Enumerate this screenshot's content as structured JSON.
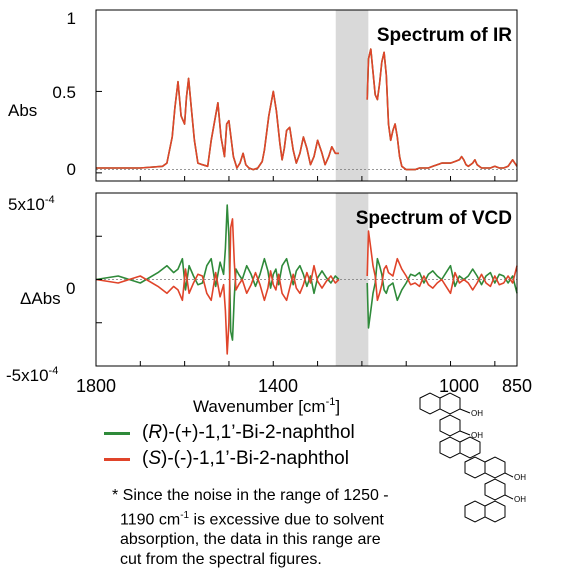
{
  "colors": {
    "R": "#2f8a3a",
    "S": "#e0442a",
    "cut": "#d9d9d9",
    "zero": "#777777"
  },
  "chart_data": [
    {
      "type": "line",
      "title": "Spectrum of IR",
      "ylabel": "Abs",
      "xlabel": "",
      "xlim": [
        1800,
        850
      ],
      "ylim": [
        -0.05,
        1.0
      ],
      "yticks": [
        "1",
        "0.5",
        "0"
      ],
      "cut_range": [
        1250,
        1190
      ],
      "series": [
        {
          "name": "(R)-(+)-1,1'-Bi-2-naphthol",
          "color_key": "R",
          "x": [
            1800,
            1700,
            1650,
            1640,
            1628,
            1622,
            1615,
            1608,
            1600,
            1596,
            1591,
            1585,
            1578,
            1570,
            1560,
            1548,
            1540,
            1525,
            1518,
            1510,
            1505,
            1500,
            1490,
            1482,
            1475,
            1468,
            1462,
            1455,
            1445,
            1435,
            1425,
            1420,
            1410,
            1400,
            1393,
            1385,
            1380,
            1375,
            1370,
            1363,
            1355,
            1348,
            1340,
            1332,
            1324,
            1316,
            1308,
            1300,
            1290,
            1283,
            1275,
            1268,
            1260,
            1252,
            1188,
            1185,
            1180,
            1175,
            1170,
            1165,
            1160,
            1155,
            1150,
            1145,
            1140,
            1135,
            1130,
            1125,
            1120,
            1115,
            1110,
            1100,
            1090,
            1080,
            1070,
            1060,
            1050,
            1040,
            1030,
            1020,
            1000,
            990,
            980,
            975,
            970,
            965,
            960,
            950,
            945,
            940,
            930,
            920,
            910,
            900,
            890,
            880,
            870,
            860,
            850
          ],
          "y": [
            0.03,
            0.03,
            0.04,
            0.06,
            0.22,
            0.4,
            0.56,
            0.35,
            0.3,
            0.46,
            0.58,
            0.4,
            0.2,
            0.06,
            0.05,
            0.04,
            0.2,
            0.43,
            0.22,
            0.1,
            0.3,
            0.32,
            0.1,
            0.03,
            0.06,
            0.12,
            0.05,
            0.03,
            0.02,
            0.03,
            0.07,
            0.14,
            0.35,
            0.5,
            0.38,
            0.18,
            0.08,
            0.15,
            0.26,
            0.28,
            0.14,
            0.06,
            0.12,
            0.22,
            0.15,
            0.05,
            0.1,
            0.2,
            0.12,
            0.05,
            0.1,
            0.16,
            0.12,
            0.12,
            0.45,
            0.7,
            0.76,
            0.62,
            0.48,
            0.45,
            0.55,
            0.68,
            0.74,
            0.6,
            0.3,
            0.2,
            0.26,
            0.3,
            0.22,
            0.1,
            0.04,
            0.02,
            0.02,
            0.02,
            0.03,
            0.03,
            0.03,
            0.04,
            0.05,
            0.06,
            0.06,
            0.07,
            0.08,
            0.1,
            0.08,
            0.05,
            0.04,
            0.06,
            0.08,
            0.05,
            0.03,
            0.03,
            0.03,
            0.04,
            0.03,
            0.03,
            0.04,
            0.08,
            0.04
          ]
        },
        {
          "name": "(S)-(-)-1,1'-Bi-2-naphthol",
          "color_key": "S",
          "x": [
            1800,
            1700,
            1650,
            1640,
            1628,
            1622,
            1615,
            1608,
            1600,
            1596,
            1591,
            1585,
            1578,
            1570,
            1560,
            1548,
            1540,
            1525,
            1518,
            1510,
            1505,
            1500,
            1490,
            1482,
            1475,
            1468,
            1462,
            1455,
            1445,
            1435,
            1425,
            1420,
            1410,
            1400,
            1393,
            1385,
            1380,
            1375,
            1370,
            1363,
            1355,
            1348,
            1340,
            1332,
            1324,
            1316,
            1308,
            1300,
            1290,
            1283,
            1275,
            1268,
            1260,
            1252,
            1188,
            1185,
            1180,
            1175,
            1170,
            1165,
            1160,
            1155,
            1150,
            1145,
            1140,
            1135,
            1130,
            1125,
            1120,
            1115,
            1110,
            1100,
            1090,
            1080,
            1070,
            1060,
            1050,
            1040,
            1030,
            1020,
            1000,
            990,
            980,
            975,
            970,
            965,
            960,
            950,
            945,
            940,
            930,
            920,
            910,
            900,
            890,
            880,
            870,
            860,
            850
          ],
          "y": [
            0.03,
            0.03,
            0.04,
            0.06,
            0.22,
            0.4,
            0.56,
            0.35,
            0.3,
            0.46,
            0.58,
            0.4,
            0.2,
            0.06,
            0.05,
            0.04,
            0.2,
            0.43,
            0.22,
            0.1,
            0.3,
            0.32,
            0.1,
            0.03,
            0.06,
            0.12,
            0.05,
            0.03,
            0.02,
            0.03,
            0.07,
            0.14,
            0.35,
            0.5,
            0.38,
            0.18,
            0.08,
            0.15,
            0.26,
            0.28,
            0.14,
            0.06,
            0.12,
            0.22,
            0.15,
            0.05,
            0.1,
            0.2,
            0.12,
            0.05,
            0.1,
            0.16,
            0.12,
            0.12,
            0.45,
            0.7,
            0.76,
            0.62,
            0.48,
            0.45,
            0.55,
            0.68,
            0.74,
            0.6,
            0.3,
            0.2,
            0.26,
            0.3,
            0.22,
            0.1,
            0.04,
            0.02,
            0.02,
            0.02,
            0.03,
            0.03,
            0.03,
            0.04,
            0.05,
            0.06,
            0.06,
            0.07,
            0.08,
            0.1,
            0.08,
            0.05,
            0.04,
            0.06,
            0.08,
            0.05,
            0.03,
            0.03,
            0.03,
            0.04,
            0.03,
            0.03,
            0.04,
            0.08,
            0.04
          ]
        }
      ]
    },
    {
      "type": "line",
      "title": "Spectrum of VCD",
      "ylabel": "ΔAbs",
      "xlabel": "Wavenumber [cm-1]",
      "xlim": [
        1800,
        850
      ],
      "ylim": [
        -0.0005,
        0.0005
      ],
      "yticks": [
        "5x10-4",
        "0",
        "-5x10-4"
      ],
      "xticks": [
        "1800",
        "1400",
        "1000",
        "850"
      ],
      "cut_range": [
        1250,
        1190
      ],
      "series": [
        {
          "name": "(R)-(+)-1,1'-Bi-2-naphthol",
          "color_key": "R",
          "x": [
            1800,
            1750,
            1700,
            1660,
            1640,
            1625,
            1615,
            1605,
            1598,
            1590,
            1580,
            1570,
            1560,
            1550,
            1540,
            1530,
            1520,
            1512,
            1508,
            1504,
            1500,
            1496,
            1492,
            1488,
            1484,
            1478,
            1470,
            1460,
            1450,
            1440,
            1430,
            1420,
            1412,
            1406,
            1400,
            1394,
            1388,
            1380,
            1370,
            1362,
            1355,
            1348,
            1340,
            1332,
            1324,
            1316,
            1308,
            1300,
            1290,
            1280,
            1270,
            1260,
            1252,
            1188,
            1185,
            1180,
            1175,
            1170,
            1165,
            1160,
            1155,
            1150,
            1145,
            1140,
            1130,
            1120,
            1110,
            1100,
            1090,
            1080,
            1070,
            1060,
            1050,
            1040,
            1030,
            1020,
            1010,
            1000,
            990,
            980,
            970,
            960,
            950,
            940,
            930,
            920,
            910,
            900,
            890,
            880,
            870,
            860,
            850
          ],
          "y": [
            0.0,
            2e-05,
            -2e-05,
            4e-05,
            8e-05,
            4e-05,
            6e-05,
            0.00012,
            -6e-05,
            8e-05,
            2e-05,
            -3e-05,
            -2e-05,
            8e-05,
            0.00012,
            -4e-05,
            0.0001,
            3e-05,
            0.00018,
            0.00043,
            0.00025,
            -0.0003,
            -0.00035,
            -0.0001,
            6e-05,
            3e-05,
            0.0,
            8e-05,
            3e-05,
            -4e-05,
            3e-05,
            0.00012,
            5e-05,
            -5e-05,
            3e-05,
            6e-05,
            -3e-05,
            8e-05,
            0.00012,
            4e-05,
            -3e-05,
            5e-05,
            8e-05,
            3e-05,
            -4e-05,
            2e-05,
            -8e-05,
            1e-05,
            5e-05,
            1e-05,
            -2e-05,
            2e-05,
            0.0,
            -2e-05,
            -0.00028,
            -0.00018,
            -8e-05,
            -2e-05,
            0.00012,
            8e-05,
            3e-05,
            -6e-05,
            -8e-05,
            -4e-05,
            -2e-05,
            -0.00012,
            -6e-05,
            -2e-05,
            3e-05,
            2e-05,
            4e-05,
            -2e-05,
            3e-05,
            5e-05,
            2e-05,
            0.0,
            4e-05,
            8e-05,
            -4e-05,
            2e-05,
            0.0,
            2e-05,
            6e-05,
            2e-05,
            -3e-05,
            2e-05,
            4e-05,
            -2e-05,
            3e-05,
            2e-05,
            -2e-05,
            2e-05,
            -8e-05
          ]
        },
        {
          "name": "(S)-(-)-1,1'-Bi-2-naphthol",
          "color_key": "S",
          "x": [
            1800,
            1750,
            1700,
            1660,
            1640,
            1625,
            1615,
            1605,
            1598,
            1590,
            1580,
            1570,
            1560,
            1550,
            1540,
            1530,
            1520,
            1512,
            1508,
            1504,
            1500,
            1496,
            1492,
            1488,
            1484,
            1478,
            1470,
            1460,
            1450,
            1440,
            1430,
            1420,
            1412,
            1406,
            1400,
            1394,
            1388,
            1380,
            1370,
            1362,
            1355,
            1348,
            1340,
            1332,
            1324,
            1316,
            1308,
            1300,
            1290,
            1280,
            1270,
            1260,
            1252,
            1188,
            1185,
            1180,
            1175,
            1170,
            1165,
            1160,
            1155,
            1150,
            1145,
            1140,
            1130,
            1120,
            1110,
            1100,
            1090,
            1080,
            1070,
            1060,
            1050,
            1040,
            1030,
            1020,
            1010,
            1000,
            990,
            980,
            970,
            960,
            950,
            940,
            930,
            920,
            910,
            900,
            890,
            880,
            870,
            860,
            850
          ],
          "y": [
            0.0,
            -2e-05,
            2e-05,
            -4e-05,
            -8e-05,
            -4e-05,
            -6e-05,
            -0.00012,
            6e-05,
            -8e-05,
            -2e-05,
            3e-05,
            2e-05,
            -8e-05,
            -0.00012,
            4e-05,
            -0.0001,
            -3e-05,
            -0.00018,
            -0.00043,
            -0.00025,
            0.0003,
            0.00035,
            0.0001,
            -6e-05,
            -3e-05,
            0.0,
            -8e-05,
            -3e-05,
            4e-05,
            -3e-05,
            -0.00012,
            -5e-05,
            5e-05,
            -3e-05,
            -6e-05,
            3e-05,
            -8e-05,
            -0.00012,
            -4e-05,
            3e-05,
            -5e-05,
            -8e-05,
            -3e-05,
            4e-05,
            -2e-05,
            8e-05,
            -1e-05,
            -5e-05,
            -1e-05,
            2e-05,
            -2e-05,
            0.0,
            2e-05,
            0.00028,
            0.00018,
            8e-05,
            2e-05,
            -0.00012,
            -8e-05,
            -3e-05,
            6e-05,
            8e-05,
            4e-05,
            2e-05,
            0.00012,
            6e-05,
            2e-05,
            -3e-05,
            -2e-05,
            -4e-05,
            2e-05,
            -3e-05,
            -5e-05,
            -2e-05,
            0.0,
            -4e-05,
            -8e-05,
            4e-05,
            -2e-05,
            0.0,
            -2e-05,
            -6e-05,
            -2e-05,
            3e-05,
            -2e-05,
            -4e-05,
            2e-05,
            -3e-05,
            -2e-05,
            2e-05,
            -2e-05,
            8e-05
          ]
        }
      ]
    }
  ],
  "ir_panel": {
    "title": "Spectrum of IR",
    "ylabel": "Abs",
    "yticks": [
      "1",
      "0.5",
      "0"
    ]
  },
  "vcd_panel": {
    "title": "Spectrum of VCD",
    "ylabel": "ΔAbs",
    "ytick_top_base": "5x10",
    "ytick_top_exp": "-4",
    "ytick_mid": "0",
    "ytick_bot_base": "-5x10",
    "ytick_bot_exp": "-4"
  },
  "xaxis": {
    "ticks": [
      "1800",
      "1400",
      "1000",
      "850"
    ],
    "label_main": "Wavenumber [cm",
    "label_exp": "-1",
    "label_end": "]"
  },
  "legend": [
    {
      "key": "R",
      "pre": "(",
      "italic": "R",
      "post": ")-(+)-1,1’-Bi-2-naphthol"
    },
    {
      "key": "S",
      "pre": "(",
      "italic": "S",
      "post": ")-(-)-1,1’-Bi-2-naphthol"
    }
  ],
  "structure_labels": {
    "oh": "OH"
  },
  "note": {
    "l1": "* Since the noise in the range of 1250 -",
    "l2a": "1190 cm",
    "l2exp": "-1",
    "l2b": " is excessive due to solvent",
    "l3": "absorption, the data in this range are",
    "l4": "cut from the spectral figures."
  }
}
